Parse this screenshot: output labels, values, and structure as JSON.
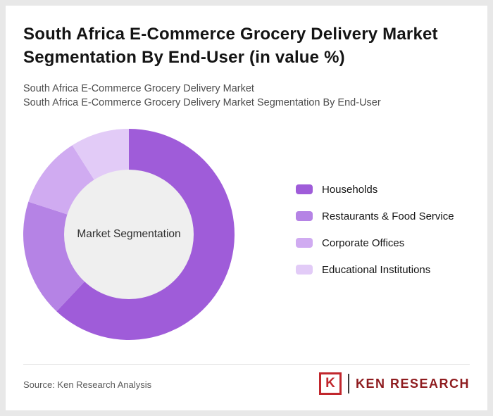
{
  "header": {
    "title_line1": "South Africa E-Commerce Grocery Delivery Market",
    "title_line2": "Segmentation By End-User (in value %)",
    "subtitle_line1": "South Africa E-Commerce Grocery Delivery Market",
    "subtitle_line2": "South Africa E-Commerce Grocery Delivery Market Segmentation By End-User"
  },
  "chart_data": {
    "type": "pie",
    "variant": "donut",
    "title": "South Africa E-Commerce Grocery Delivery Market Segmentation By End-User (in value %)",
    "center_label": "Market Segmentation",
    "center_hole_color": "#efefef",
    "start_angle_deg": 0,
    "direction": "clockwise",
    "legend_position": "right",
    "values_labeled_on_chart": false,
    "segments": [
      {
        "label": "Households",
        "value": 62,
        "color": "#9f5cd9"
      },
      {
        "label": "Restaurants & Food Service",
        "value": 18,
        "color": "#b583e5"
      },
      {
        "label": "Corporate Offices",
        "value": 11,
        "color": "#d0abf1"
      },
      {
        "label": "Educational Institutions",
        "value": 9,
        "color": "#e2cbf7"
      }
    ]
  },
  "footer": {
    "source": "Source: Ken Research Analysis",
    "logo": {
      "letter": "K",
      "text": "KEN RESEARCH"
    }
  }
}
